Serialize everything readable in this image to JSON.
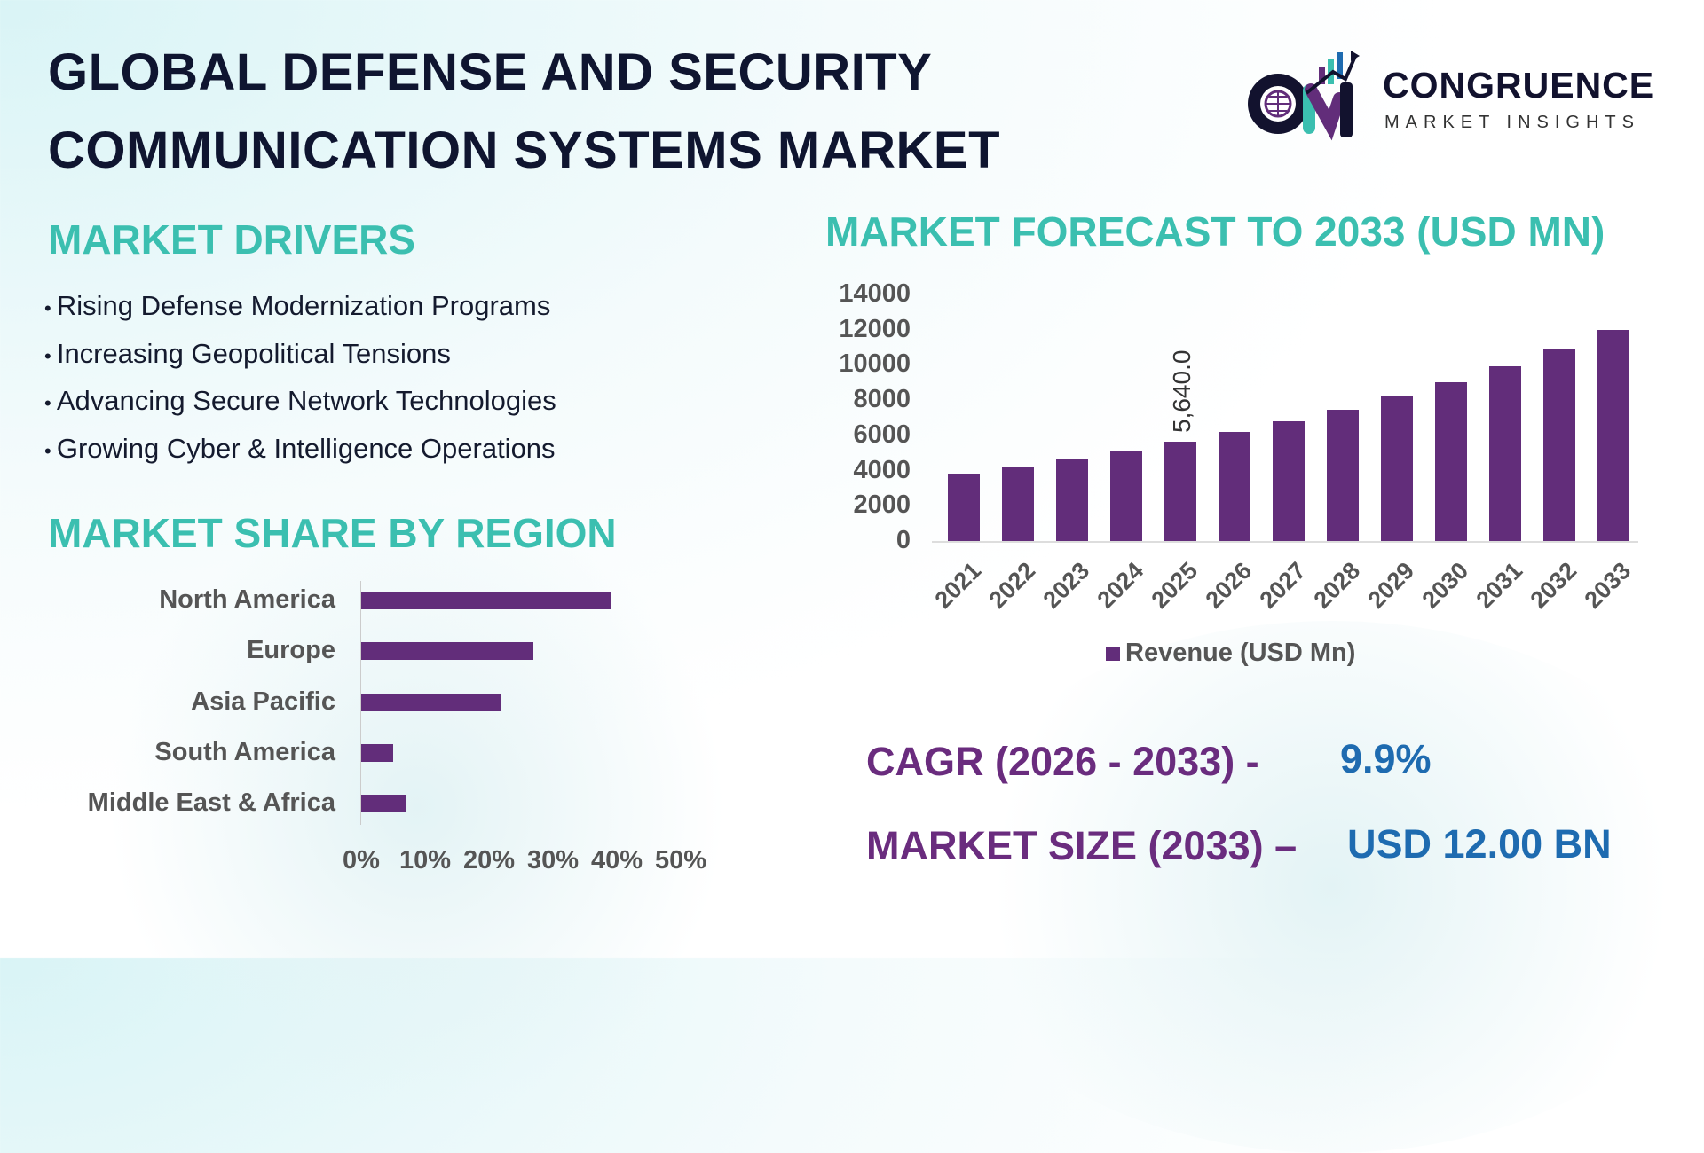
{
  "title": {
    "line1": "GLOBAL DEFENSE AND SECURITY",
    "line2": "COMMUNICATION SYSTEMS MARKET"
  },
  "logo": {
    "name": "CONGRUENCE",
    "tagline": "MARKET INSIGHTS",
    "mark": "CM"
  },
  "drivers": {
    "heading": "MARKET DRIVERS",
    "items": [
      "Rising Defense Modernization Programs",
      "Increasing Geopolitical Tensions",
      "Advancing Secure Network Technologies",
      "Growing Cyber & Intelligence Operations"
    ]
  },
  "colors": {
    "bar": "#622d7a",
    "heading": "#3bbfb0",
    "title": "#0f1530",
    "cagr_label": "#6a2c7e",
    "cagr_value": "#1e6bb0"
  },
  "chart_data": [
    {
      "type": "bar",
      "orientation": "horizontal",
      "title": "MARKET SHARE BY REGION",
      "categories": [
        "North America",
        "Europe",
        "Asia Pacific",
        "South America",
        "Middle East & Africa"
      ],
      "values": [
        39,
        27,
        22,
        5,
        7
      ],
      "unit": "%",
      "xlim": [
        0,
        50
      ],
      "x_ticks": [
        "0%",
        "10%",
        "20%",
        "30%",
        "40%",
        "50%"
      ],
      "grid": false
    },
    {
      "type": "bar",
      "title": "MARKET FORECAST TO 2033 (USD MN)",
      "categories": [
        "2021",
        "2022",
        "2023",
        "2024",
        "2025",
        "2026",
        "2027",
        "2028",
        "2029",
        "2030",
        "2031",
        "2032",
        "2033"
      ],
      "series": [
        {
          "name": "Revenue (USD Mn)",
          "values": [
            3830,
            4230,
            4630,
            5130,
            5640,
            6190,
            6800,
            7450,
            8200,
            9000,
            9900,
            10900,
            12000
          ]
        }
      ],
      "data_labels": [
        {
          "category": "2025",
          "text": "5,640.0"
        }
      ],
      "ylim": [
        0,
        14000
      ],
      "y_ticks": [
        "0",
        "2000",
        "4000",
        "6000",
        "8000",
        "10000",
        "12000",
        "14000"
      ],
      "legend": "bottom",
      "grid": false
    }
  ],
  "stats": {
    "cagr_label": "CAGR (2026 - 2033) -",
    "cagr_value": "9.9%",
    "size_label": "MARKET SIZE (2033) –",
    "size_value": "USD 12.00 BN"
  }
}
